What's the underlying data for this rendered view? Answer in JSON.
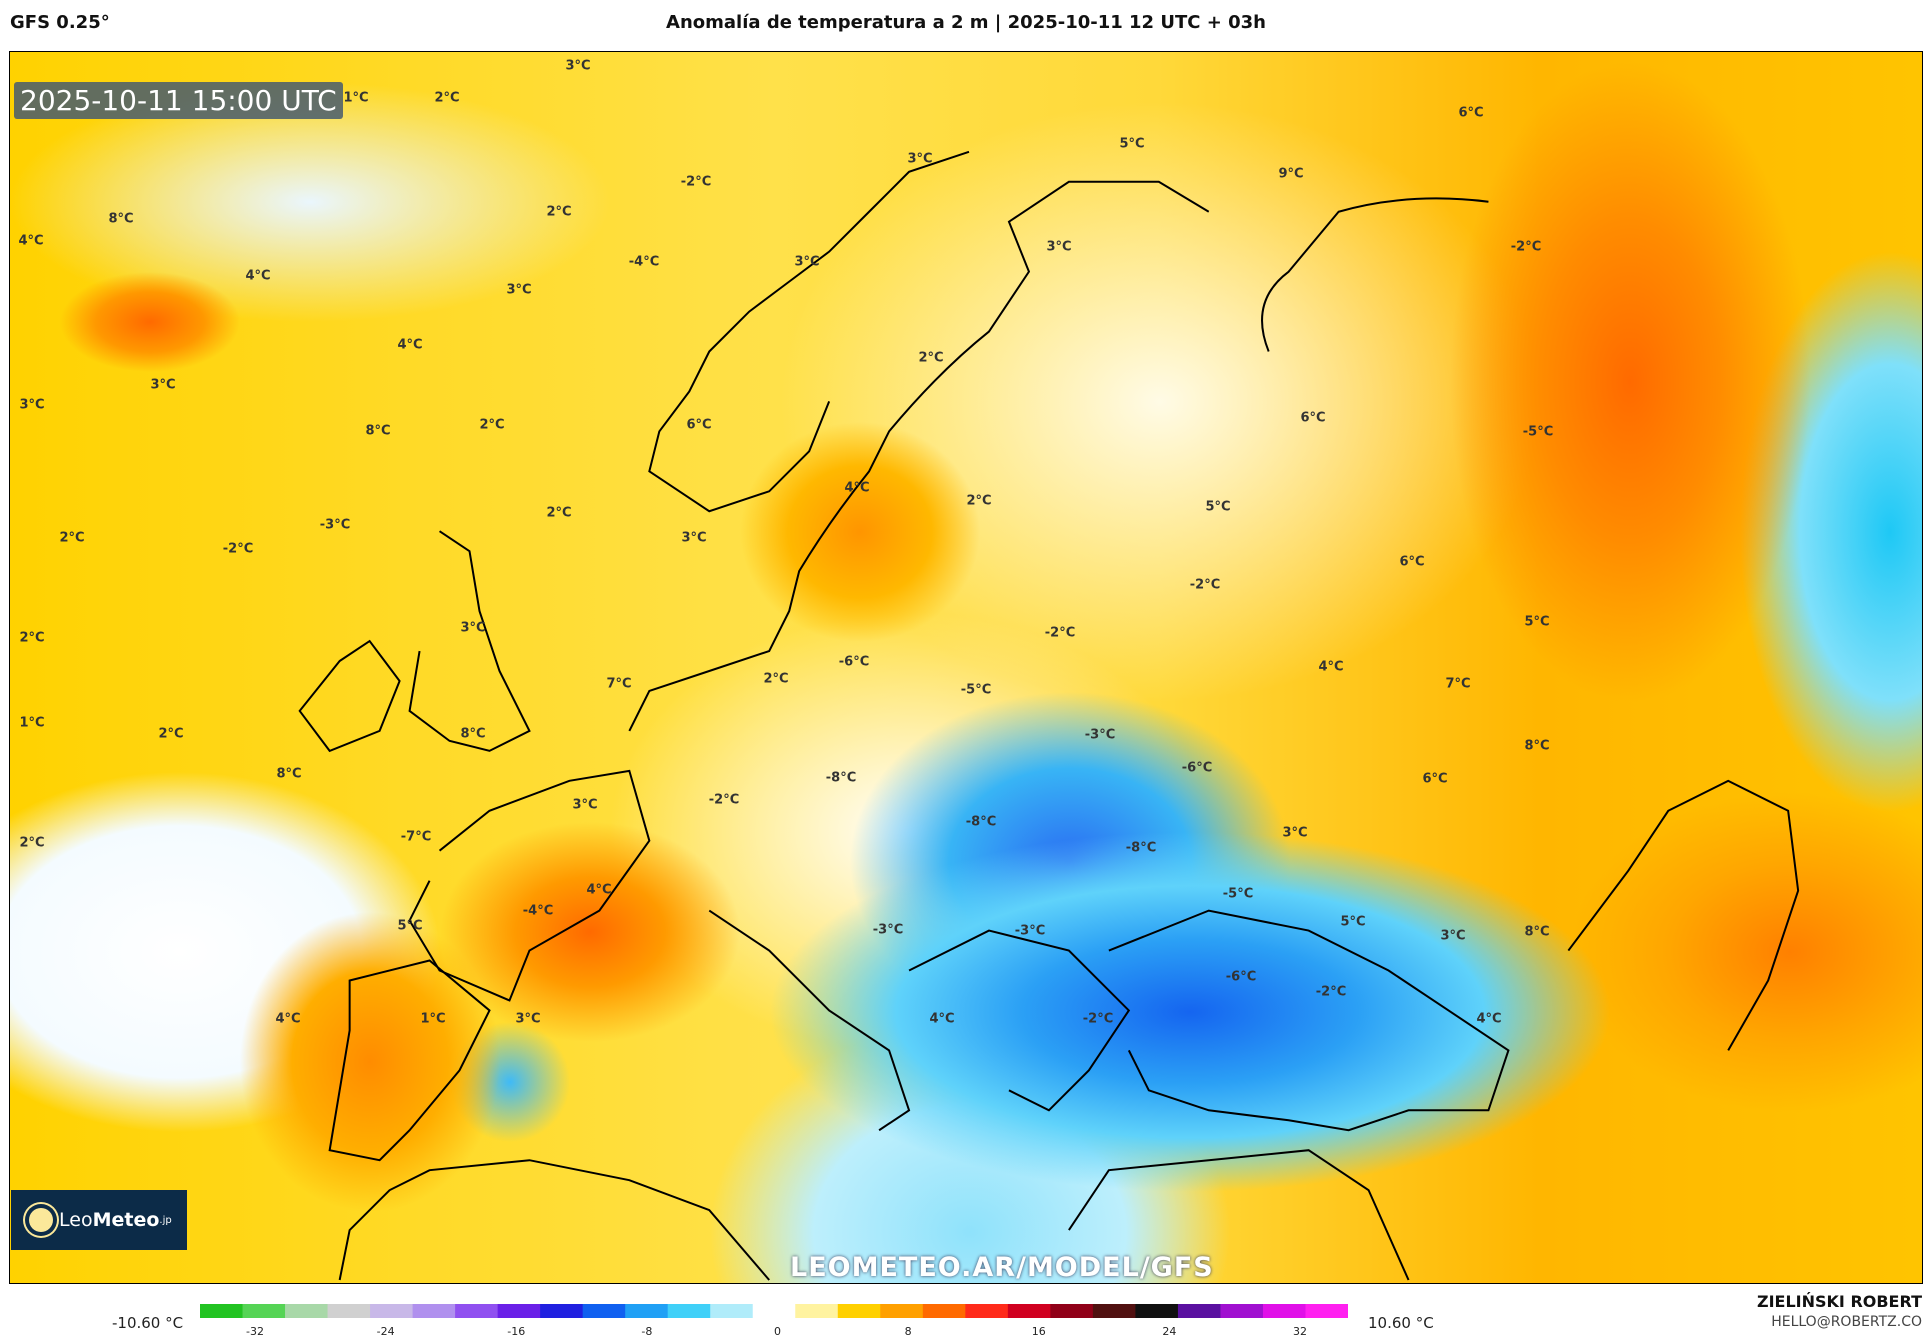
{
  "header": {
    "model": "GFS 0.25°",
    "title": "Anomalía de temperatura a 2 m | 2025-10-11 12 UTC + 03h"
  },
  "map": {
    "timestamp": "2025-10-11 15:00 UTC",
    "watermark": "LEOMETEO.AR/MODEL/GFS",
    "logo": {
      "text_light": "Leo",
      "text_bold": "Meteo",
      "suffix": ".jp"
    },
    "labels": [
      "3°C",
      "1°C",
      "2°C",
      "5°C",
      "9°C",
      "6°C",
      "3°C",
      "-2°C",
      "2°C",
      "8°C",
      "4°C",
      "-2°C",
      "3°C",
      "-4°C",
      "3°C",
      "4°C",
      "3°C",
      "4°C",
      "2°C",
      "3°C",
      "3°C",
      "6°C",
      "-5°C",
      "8°C",
      "2°C",
      "6°C",
      "4°C",
      "2°C",
      "5°C",
      "-3°C",
      "2°C",
      "-2°C",
      "2°C",
      "3°C",
      "6°C",
      "-2°C",
      "3°C",
      "2°C",
      "-2°C",
      "5°C",
      "-6°C",
      "2°C",
      "4°C",
      "7°C",
      "-5°C",
      "7°C",
      "1°C",
      "2°C",
      "8°C",
      "-3°C",
      "8°C",
      "-6°C",
      "8°C",
      "-8°C",
      "6°C",
      "-2°C",
      "3°C",
      "-8°C",
      "-7°C",
      "3°C",
      "2°C",
      "-8°C",
      "4°C",
      "-5°C",
      "-4°C",
      "5°C",
      "5°C",
      "-3°C",
      "-3°C",
      "3°C",
      "8°C",
      "-6°C",
      "-2°C",
      "4°C",
      "1°C",
      "3°C",
      "4°C",
      "-2°C",
      "4°C"
    ]
  },
  "colorbar": {
    "min_label": "-10.60 °C",
    "max_label": "10.60 °C",
    "ticks": [
      "-32",
      "-24",
      "-16",
      "-8",
      "0",
      "8",
      "16",
      "24",
      "32"
    ],
    "colors": [
      "#22c322",
      "#55d455",
      "#a8d8a8",
      "#d0d0d0",
      "#c8b8e8",
      "#b090ee",
      "#9050f0",
      "#6a20e8",
      "#2020e0",
      "#1060f0",
      "#20a0f5",
      "#40d0f8",
      "#b0ecfa",
      "#ffffff",
      "#fff3a0",
      "#ffd000",
      "#ffa000",
      "#ff6a00",
      "#ff2a1a",
      "#d00020",
      "#900018",
      "#501010",
      "#101010",
      "#5a10a0",
      "#a010d0",
      "#e010e8",
      "#ff20f0"
    ]
  },
  "credit": {
    "name": "ZIELIŃSKI ROBERT",
    "email": "HELLO@ROBERTZ.CO"
  }
}
